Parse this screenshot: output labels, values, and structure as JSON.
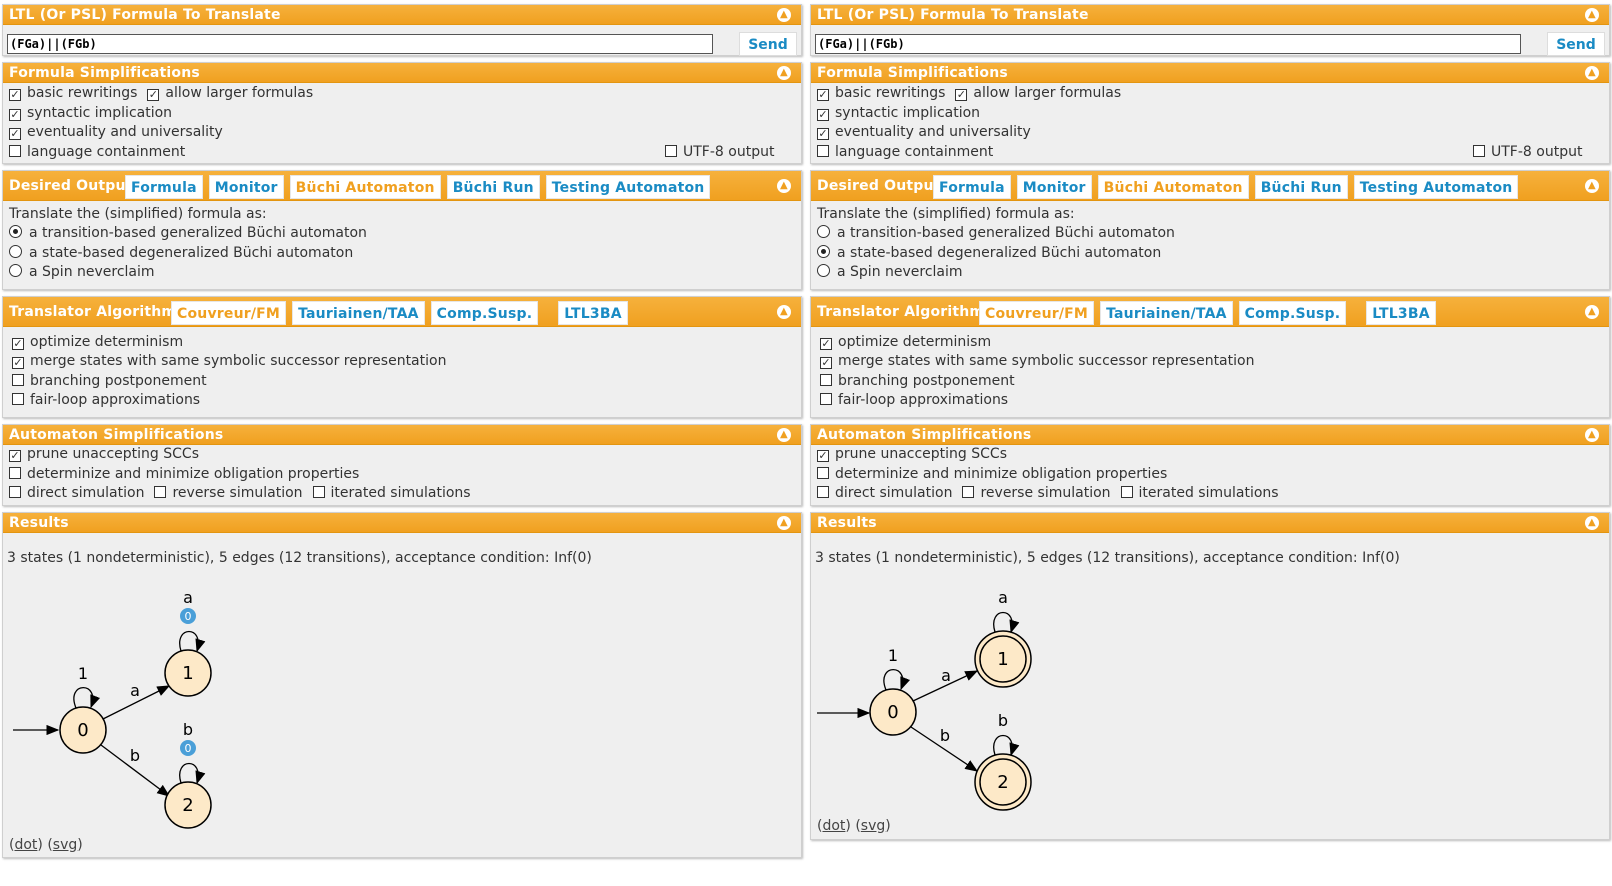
{
  "left": {
    "input_title": "LTL (Or PSL) Formula To Translate",
    "formula": "(FGa)||(FGb)",
    "send": "Send",
    "simp_title": "Formula Simplifications",
    "simp": {
      "basic": "basic rewritings",
      "larger": "allow larger formulas",
      "syntactic": "syntactic implication",
      "eventuality": "eventuality and universality",
      "language": "language containment",
      "utf8": "UTF-8 output"
    },
    "output_title": "Desired Output:",
    "output_tabs": [
      "Formula",
      "Monitor",
      "Büchi Automaton",
      "Büchi Run",
      "Testing Automaton"
    ],
    "translate_as": "Translate the (simplified) formula as:",
    "radios": [
      "a transition-based generalized Büchi automaton",
      "a state-based degeneralized Büchi automaton",
      "a Spin neverclaim"
    ],
    "alg_title": "Translator Algorithm:",
    "alg_tabs": [
      "Couvreur/FM",
      "Tauriainen/TAA",
      "Comp.Susp.",
      "LTL3BA"
    ],
    "alg_opts": [
      "optimize determinism",
      "merge states with same symbolic successor representation",
      "branching postponement",
      "fair-loop approximations"
    ],
    "auto_title": "Automaton Simplifications",
    "auto": {
      "prune": "prune unaccepting SCCs",
      "determinize": "determinize and minimize obligation properties",
      "direct": "direct simulation",
      "reverse": "reverse simulation",
      "iterated": "iterated simulations"
    },
    "results_title": "Results",
    "status": "3 states (1 nondeterministic), 5 edges (12 transitions), acceptance condition: Inf(0)",
    "graph": {
      "s0": "0",
      "s1": "1",
      "s2": "2",
      "l_self0": "1",
      "l_a": "a",
      "l_b": "b",
      "l_self1": "a",
      "l_self2": "b",
      "acc1": "0",
      "acc2": "0"
    },
    "link_dot": "dot",
    "link_svg": "svg"
  },
  "right": {
    "input_title": "LTL (Or PSL) Formula To Translate",
    "formula": "(FGa)||(FGb)",
    "send": "Send",
    "simp_title": "Formula Simplifications",
    "simp": {
      "basic": "basic rewritings",
      "larger": "allow larger formulas",
      "syntactic": "syntactic implication",
      "eventuality": "eventuality and universality",
      "language": "language containment",
      "utf8": "UTF-8 output"
    },
    "output_title": "Desired Output:",
    "output_tabs": [
      "Formula",
      "Monitor",
      "Büchi Automaton",
      "Büchi Run",
      "Testing Automaton"
    ],
    "translate_as": "Translate the (simplified) formula as:",
    "radios": [
      "a transition-based generalized Büchi automaton",
      "a state-based degeneralized Büchi automaton",
      "a Spin neverclaim"
    ],
    "alg_title": "Translator Algorithm:",
    "alg_tabs": [
      "Couvreur/FM",
      "Tauriainen/TAA",
      "Comp.Susp.",
      "LTL3BA"
    ],
    "alg_opts": [
      "optimize determinism",
      "merge states with same symbolic successor representation",
      "branching postponement",
      "fair-loop approximations"
    ],
    "auto_title": "Automaton Simplifications",
    "auto": {
      "prune": "prune unaccepting SCCs",
      "determinize": "determinize and minimize obligation properties",
      "direct": "direct simulation",
      "reverse": "reverse simulation",
      "iterated": "iterated simulations"
    },
    "results_title": "Results",
    "status": "3 states (1 nondeterministic), 5 edges (12 transitions), acceptance condition: Inf(0)",
    "graph": {
      "s0": "0",
      "s1": "1",
      "s2": "2",
      "l_self0": "1",
      "l_a": "a",
      "l_b": "b",
      "l_self1": "a",
      "l_self2": "b"
    },
    "link_dot": "dot",
    "link_svg": "svg"
  },
  "colors": {
    "header": "#f0a020",
    "tab_link": "#1a8bc4",
    "state_fill": "#fde9c8",
    "acc_badge": "#4a9fd8"
  }
}
